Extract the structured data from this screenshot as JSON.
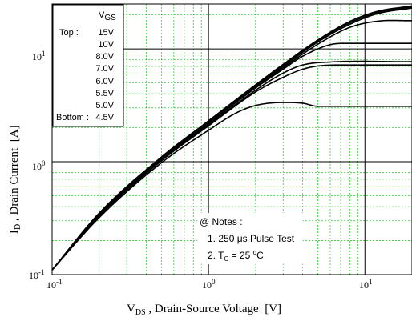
{
  "chart_data": {
    "type": "line",
    "x_scale": "log",
    "y_scale": "log",
    "xlim": [
      0.1,
      20
    ],
    "ylim": [
      0.1,
      25
    ],
    "grid": true,
    "x_ticks": [
      {
        "value": 0.1,
        "base": "10",
        "exp": "-1"
      },
      {
        "value": 1,
        "base": "10",
        "exp": "0"
      },
      {
        "value": 10,
        "base": "10",
        "exp": "1"
      }
    ],
    "y_ticks": [
      {
        "value": 0.1,
        "base": "10",
        "exp": "-1"
      },
      {
        "value": 1,
        "base": "10",
        "exp": "0"
      },
      {
        "value": 10,
        "base": "10",
        "exp": "1"
      }
    ],
    "xlabel": {
      "main": "V",
      "sub": "DS",
      "rest": " , Drain-Source Voltage  [V]"
    },
    "ylabel": {
      "main": "I",
      "sub": "D",
      "rest": " , Drain Current  [A]"
    },
    "legend": {
      "header_main": "V",
      "header_sub": "GS",
      "top_label": "Top :",
      "bottom_label": "Bottom :",
      "entries": [
        "15V",
        "10V",
        "8.0V",
        "7.0V",
        "6.0V",
        "5.5V",
        "5.0V",
        "4.5V"
      ],
      "placement": "top-left"
    },
    "notes": {
      "heading": "@ Notes :",
      "line1": "1. 250 μs Pulse Test",
      "line2_main": "2. T",
      "line2_sub": "C",
      "line2_mid": " = 25 ",
      "line2_sup": "o",
      "line2_end": "C"
    },
    "series": [
      {
        "values": [
          [
            0.1,
            0.11
          ],
          [
            0.2,
            0.35
          ],
          [
            0.5,
            1.1
          ],
          [
            1,
            2.3
          ],
          [
            2,
            4.8
          ],
          [
            3,
            7.3
          ],
          [
            5,
            12
          ],
          [
            8,
            17.5
          ],
          [
            12,
            21.5
          ],
          [
            20,
            24
          ]
        ]
      },
      {
        "values": [
          [
            0.1,
            0.11
          ],
          [
            0.2,
            0.35
          ],
          [
            0.5,
            1.1
          ],
          [
            1,
            2.3
          ],
          [
            2,
            4.8
          ],
          [
            3,
            7.2
          ],
          [
            5,
            11.8
          ],
          [
            8,
            17
          ],
          [
            12,
            21
          ],
          [
            20,
            23.5
          ]
        ]
      },
      {
        "values": [
          [
            0.1,
            0.11
          ],
          [
            0.2,
            0.35
          ],
          [
            0.5,
            1.08
          ],
          [
            1,
            2.25
          ],
          [
            2,
            4.7
          ],
          [
            3,
            7
          ],
          [
            5,
            11.5
          ],
          [
            8,
            16.5
          ],
          [
            12,
            20.5
          ],
          [
            20,
            23
          ]
        ]
      },
      {
        "values": [
          [
            0.1,
            0.11
          ],
          [
            0.2,
            0.34
          ],
          [
            0.5,
            1.06
          ],
          [
            1,
            2.2
          ],
          [
            2,
            4.6
          ],
          [
            3,
            6.8
          ],
          [
            5,
            11
          ],
          [
            8,
            15.5
          ],
          [
            12,
            17.6
          ],
          [
            20,
            17.8
          ]
        ]
      },
      {
        "values": [
          [
            0.1,
            0.11
          ],
          [
            0.2,
            0.34
          ],
          [
            0.5,
            1.05
          ],
          [
            1,
            2.18
          ],
          [
            2,
            4.5
          ],
          [
            3,
            6.6
          ],
          [
            4,
            8.6
          ],
          [
            6,
            10.9
          ],
          [
            8,
            11.2
          ],
          [
            20,
            11.2
          ]
        ]
      },
      {
        "values": [
          [
            0.1,
            0.11
          ],
          [
            0.2,
            0.33
          ],
          [
            0.5,
            1.03
          ],
          [
            1,
            2.12
          ],
          [
            2,
            4.3
          ],
          [
            3,
            6.1
          ],
          [
            4,
            7.2
          ],
          [
            6,
            7.65
          ],
          [
            20,
            7.7
          ]
        ]
      },
      {
        "values": [
          [
            0.1,
            0.11
          ],
          [
            0.2,
            0.33
          ],
          [
            0.5,
            1.02
          ],
          [
            1,
            2.08
          ],
          [
            2,
            4.15
          ],
          [
            3,
            5.6
          ],
          [
            4,
            6.6
          ],
          [
            5,
            7.05
          ],
          [
            7,
            7.2
          ],
          [
            20,
            7.2
          ]
        ]
      },
      {
        "values": [
          [
            0.1,
            0.11
          ],
          [
            0.2,
            0.32
          ],
          [
            0.5,
            0.98
          ],
          [
            1,
            1.9
          ],
          [
            1.5,
            2.7
          ],
          [
            2,
            3.15
          ],
          [
            3,
            3.35
          ],
          [
            4,
            3.3
          ],
          [
            5,
            3.1
          ],
          [
            20,
            3.1
          ]
        ]
      }
    ]
  }
}
